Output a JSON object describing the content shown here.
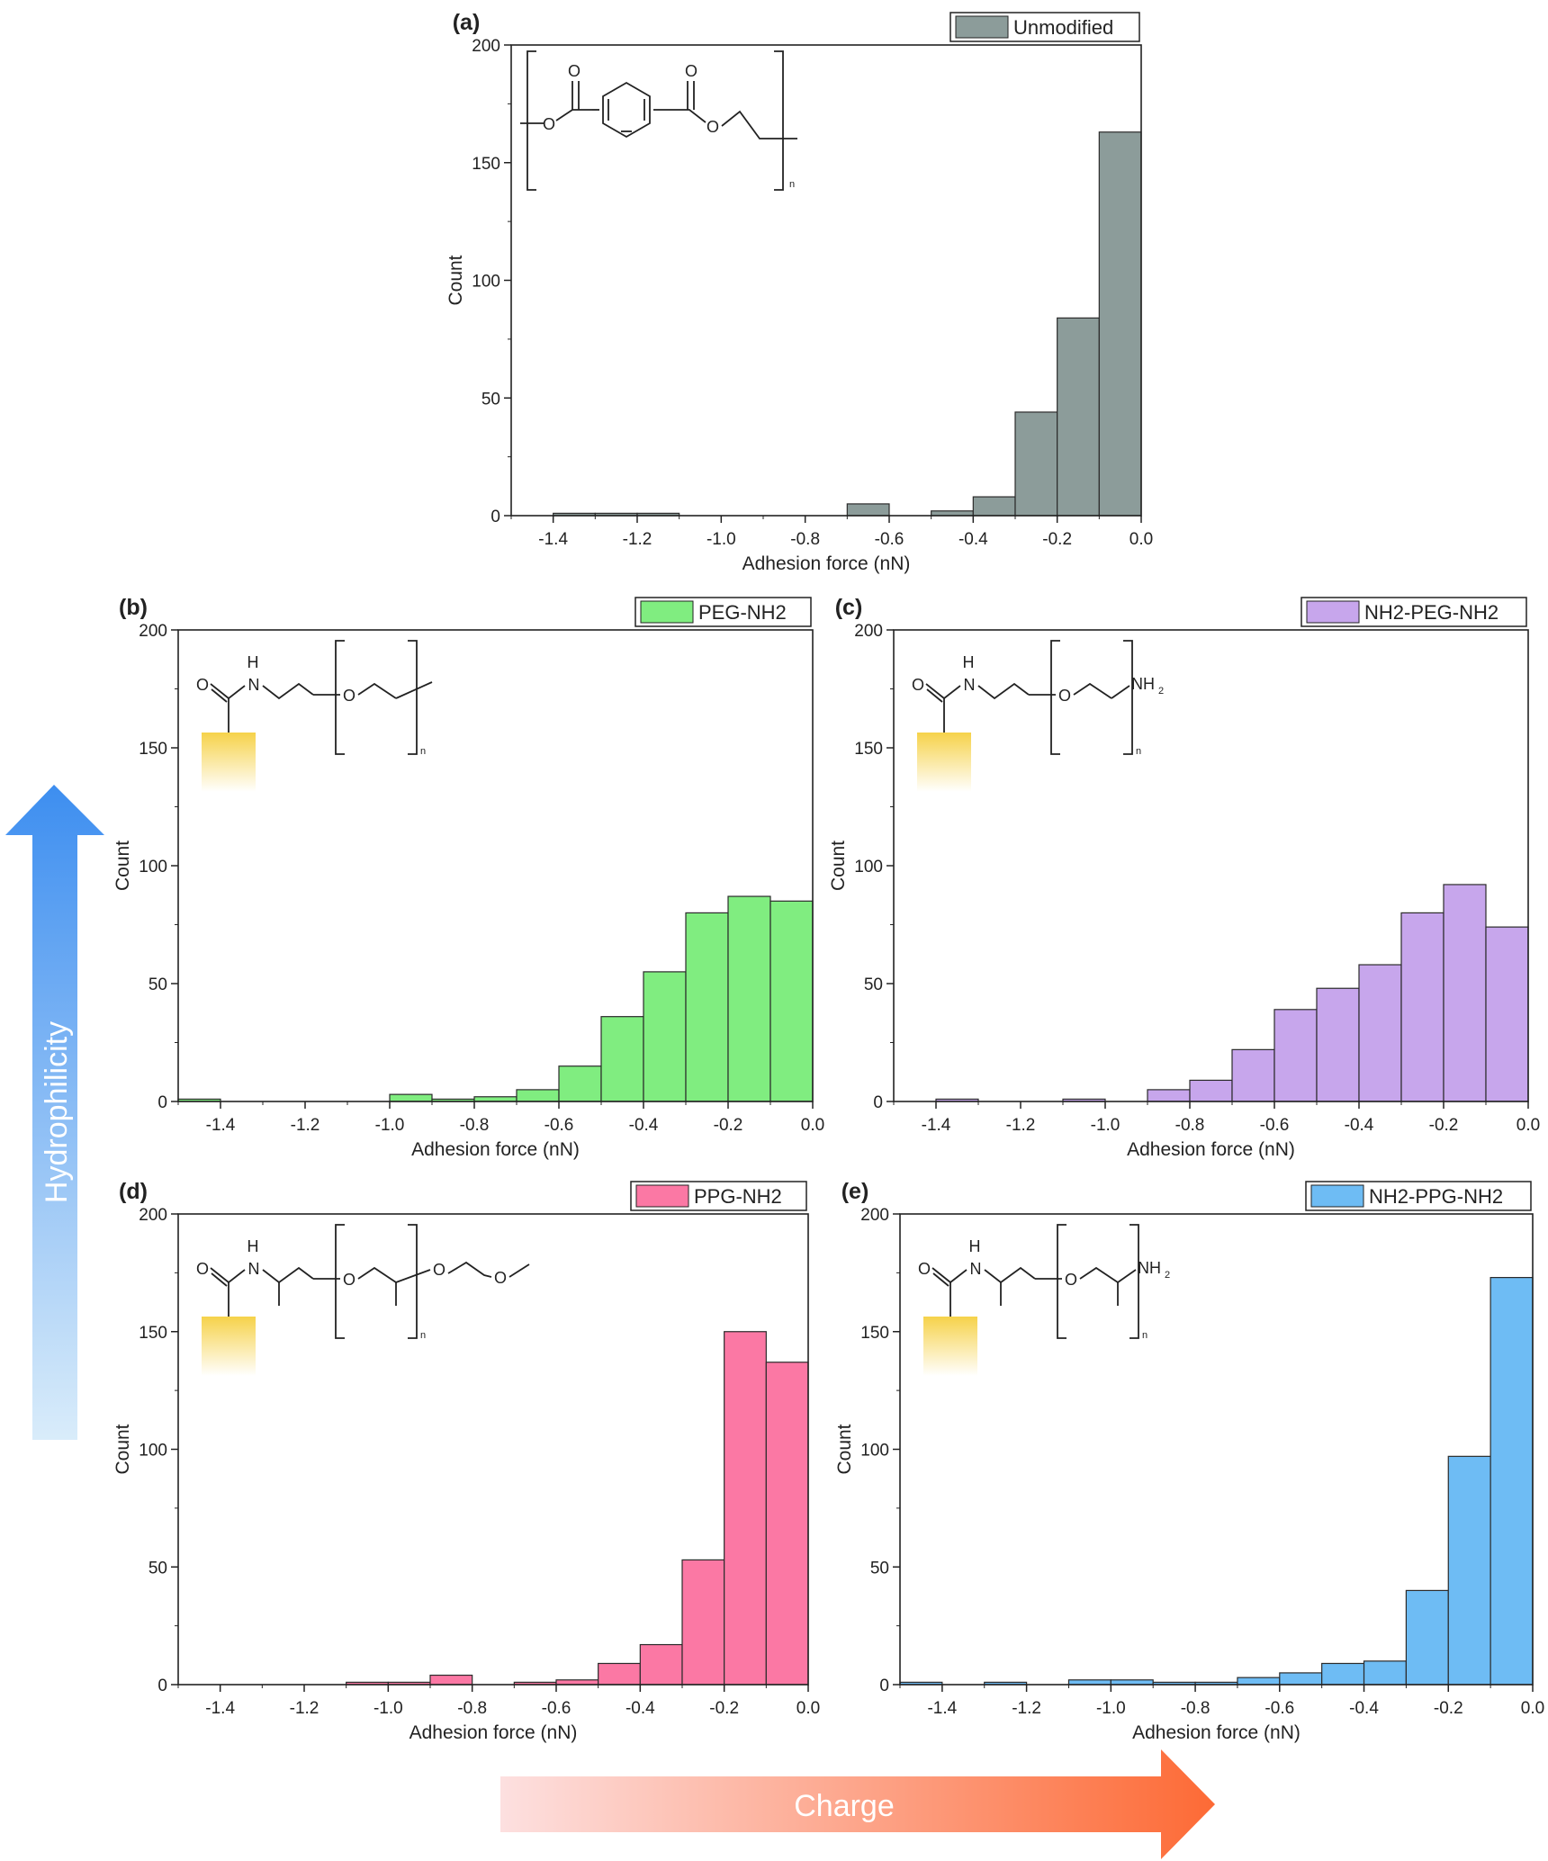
{
  "figure": {
    "arrow_hydrophilicity_label": "Hydrophilicity",
    "arrow_charge_label": "Charge",
    "colors": {
      "hydrophilicity_top": "#3d8ef0",
      "hydrophilicity_bottom": "#d9ecfa",
      "charge_left": "#fde0e0",
      "charge_right": "#fd6a35",
      "substrate": "#f6d24a"
    }
  },
  "chart_data": [
    {
      "panel": "(a)",
      "type": "bar",
      "legend": "Unmodified",
      "color": "#8c9c9a",
      "xlabel": "Adhesion force (nN)",
      "ylabel": "Count",
      "xlim": [
        -1.5,
        0.0
      ],
      "ylim": [
        0,
        200
      ],
      "xticks": [
        "-1.4",
        "-1.2",
        "-1.0",
        "-0.8",
        "-0.6",
        "-0.4",
        "-0.2",
        "0.0"
      ],
      "yticks": [
        "0",
        "50",
        "100",
        "150",
        "200"
      ],
      "bin_width": 0.1,
      "bin_starts": [
        -1.4,
        -1.3,
        -1.2,
        -1.1,
        -1.0,
        -0.9,
        -0.8,
        -0.7,
        -0.6,
        -0.5,
        -0.4,
        -0.3,
        -0.2,
        -0.1
      ],
      "values": [
        1,
        1,
        1,
        0,
        0,
        0,
        0,
        5,
        0,
        2,
        8,
        44,
        84,
        163
      ],
      "structure": {
        "type": "pet",
        "o_label": "O",
        "n_label": "n"
      }
    },
    {
      "panel": "(b)",
      "type": "bar",
      "legend": "PEG-NH2",
      "color": "#80ed80",
      "xlabel": "Adhesion force (nN)",
      "ylabel": "Count",
      "xlim": [
        -1.5,
        0.0
      ],
      "ylim": [
        0,
        200
      ],
      "xticks": [
        "-1.4",
        "-1.2",
        "-1.0",
        "-0.8",
        "-0.6",
        "-0.4",
        "-0.2",
        "0.0"
      ],
      "yticks": [
        "0",
        "50",
        "100",
        "150",
        "200"
      ],
      "bin_width": 0.1,
      "bin_starts": [
        -1.5,
        -1.4,
        -1.3,
        -1.2,
        -1.1,
        -1.0,
        -0.9,
        -0.8,
        -0.7,
        -0.6,
        -0.5,
        -0.4,
        -0.3,
        -0.2,
        -0.1
      ],
      "values": [
        1,
        0,
        0,
        0,
        0,
        3,
        1,
        2,
        5,
        15,
        36,
        55,
        80,
        87,
        85
      ],
      "structure": {
        "type": "amide",
        "h_label": "H",
        "n_label": "N",
        "o_label": "O",
        "repeat_label": "n",
        "end_label": "",
        "end_sub": "",
        "methyl": false,
        "tail": false
      }
    },
    {
      "panel": "(c)",
      "type": "bar",
      "legend": "NH2-PEG-NH2",
      "color": "#c7a6ec",
      "xlabel": "Adhesion force (nN)",
      "ylabel": "Count",
      "xlim": [
        -1.5,
        0.0
      ],
      "ylim": [
        0,
        200
      ],
      "xticks": [
        "-1.4",
        "-1.2",
        "-1.0",
        "-0.8",
        "-0.6",
        "-0.4",
        "-0.2",
        "0.0"
      ],
      "yticks": [
        "0",
        "50",
        "100",
        "150",
        "200"
      ],
      "bin_width": 0.1,
      "bin_starts": [
        -1.4,
        -1.3,
        -1.2,
        -1.1,
        -1.0,
        -0.9,
        -0.8,
        -0.7,
        -0.6,
        -0.5,
        -0.4,
        -0.3,
        -0.2,
        -0.1
      ],
      "values": [
        1,
        0,
        0,
        1,
        0,
        5,
        9,
        22,
        39,
        48,
        58,
        80,
        92,
        74
      ],
      "structure": {
        "type": "amide",
        "h_label": "H",
        "n_label": "N",
        "o_label": "O",
        "repeat_label": "n",
        "end_label": "NH",
        "end_sub": "2",
        "methyl": false,
        "tail": false
      }
    },
    {
      "panel": "(d)",
      "type": "bar",
      "legend": "PPG-NH2",
      "color": "#fb78a4",
      "xlabel": "Adhesion force (nN)",
      "ylabel": "Count",
      "xlim": [
        -1.5,
        0.0
      ],
      "ylim": [
        0,
        200
      ],
      "xticks": [
        "-1.4",
        "-1.2",
        "-1.0",
        "-0.8",
        "-0.6",
        "-0.4",
        "-0.2",
        "0.0"
      ],
      "yticks": [
        "0",
        "50",
        "100",
        "150",
        "200"
      ],
      "bin_width": 0.1,
      "bin_starts": [
        -1.5,
        -1.4,
        -1.3,
        -1.2,
        -1.1,
        -1.0,
        -0.9,
        -0.8,
        -0.7,
        -0.6,
        -0.5,
        -0.4,
        -0.3,
        -0.2,
        -0.1
      ],
      "values": [
        0,
        0,
        0,
        0,
        1,
        1,
        4,
        0,
        1,
        2,
        9,
        17,
        53,
        150,
        137
      ],
      "structure": {
        "type": "amide",
        "h_label": "H",
        "n_label": "N",
        "o_label": "O",
        "repeat_label": "n",
        "end_label": "",
        "end_sub": "",
        "methyl": true,
        "tail": true
      }
    },
    {
      "panel": "(e)",
      "type": "bar",
      "legend": "NH2-PPG-NH2",
      "color": "#6ebcf4",
      "xlabel": "Adhesion force (nN)",
      "ylabel": "Count",
      "xlim": [
        -1.5,
        0.0
      ],
      "ylim": [
        0,
        200
      ],
      "xticks": [
        "-1.4",
        "-1.2",
        "-1.0",
        "-0.8",
        "-0.6",
        "-0.4",
        "-0.2",
        "0.0"
      ],
      "yticks": [
        "0",
        "50",
        "100",
        "150",
        "200"
      ],
      "bin_width": 0.1,
      "bin_starts": [
        -1.5,
        -1.4,
        -1.3,
        -1.2,
        -1.1,
        -1.0,
        -0.9,
        -0.8,
        -0.7,
        -0.6,
        -0.5,
        -0.4,
        -0.3,
        -0.2,
        -0.1
      ],
      "values": [
        1,
        0,
        1,
        0,
        2,
        2,
        1,
        1,
        3,
        5,
        9,
        10,
        40,
        97,
        173
      ],
      "structure": {
        "type": "amide",
        "h_label": "H",
        "n_label": "N",
        "o_label": "O",
        "repeat_label": "n",
        "end_label": "NH",
        "end_sub": "2",
        "methyl": true,
        "tail": false
      }
    }
  ]
}
